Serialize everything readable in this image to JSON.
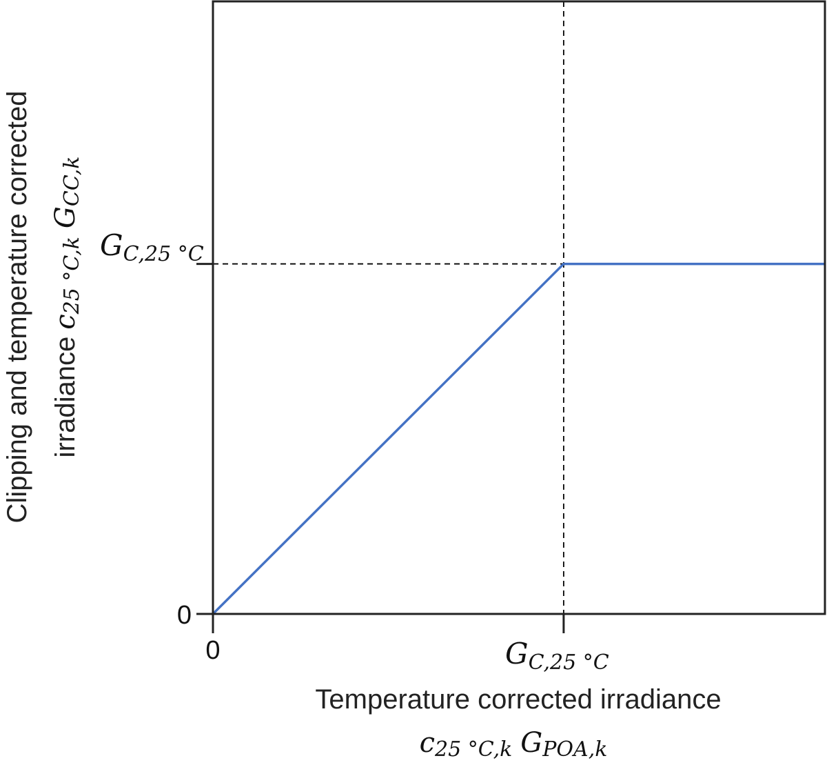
{
  "chart_data": {
    "type": "line",
    "title": "",
    "xlabel": {
      "text": "Temperature corrected irradiance",
      "symbol_c": "c",
      "symbol_c_sub": "25 °C,k",
      "symbol_g": "G",
      "symbol_g_sub": "POA,k"
    },
    "ylabel": {
      "line1": "Clipping and temperature corrected",
      "line2": "irradiance",
      "symbol_c": "c",
      "symbol_c_sub": "25 °C,k",
      "symbol_g": "G",
      "symbol_g_sub": "CC,k"
    },
    "x_ticks": [
      {
        "value": 0,
        "label": "0"
      },
      {
        "value": 1,
        "label_main": "G",
        "label_sub": "C,25 °C"
      }
    ],
    "y_ticks": [
      {
        "value": 0,
        "label": "0"
      },
      {
        "value": 1,
        "label_main": "G",
        "label_sub": "C,25 °C"
      }
    ],
    "xlim": [
      0,
      1.745
    ],
    "ylim": [
      0,
      1.75
    ],
    "series": [
      {
        "x": [
          0,
          1,
          1.745
        ],
        "y": [
          0,
          1,
          1
        ],
        "color": "#4472C4"
      }
    ],
    "reference_lines": [
      {
        "orientation": "vertical",
        "x": 1,
        "style": "dashed",
        "color": "#000000"
      },
      {
        "orientation": "horizontal",
        "y": 1,
        "x_range": [
          0,
          1
        ],
        "style": "dashed",
        "color": "#000000"
      }
    ],
    "grid": false,
    "legend": "none"
  }
}
